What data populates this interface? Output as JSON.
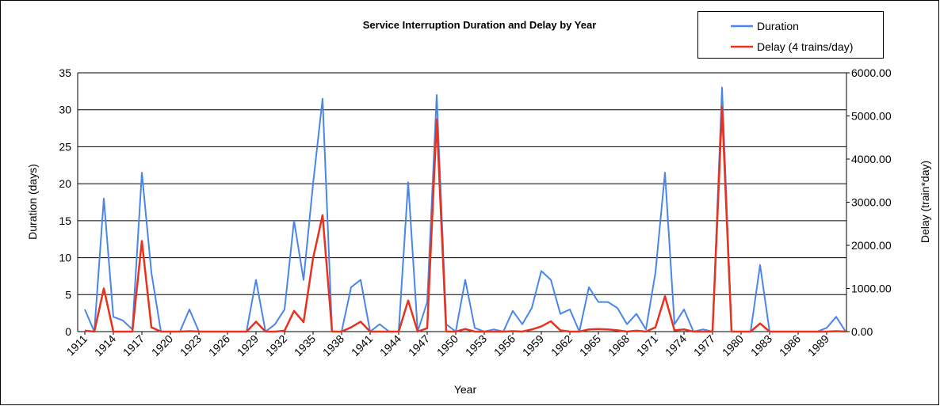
{
  "chart_data": {
    "type": "line",
    "title": "Service Interruption Duration and Delay by Year",
    "x_label": "Year",
    "y_label": "Duration (days)",
    "y2_label": "Delay (train*day)",
    "x": [
      1911,
      1912,
      1913,
      1914,
      1915,
      1916,
      1917,
      1918,
      1919,
      1920,
      1921,
      1922,
      1923,
      1924,
      1925,
      1926,
      1927,
      1928,
      1929,
      1930,
      1931,
      1932,
      1933,
      1934,
      1935,
      1936,
      1937,
      1938,
      1939,
      1940,
      1941,
      1942,
      1943,
      1944,
      1945,
      1946,
      1947,
      1948,
      1949,
      1950,
      1951,
      1952,
      1953,
      1954,
      1955,
      1956,
      1957,
      1958,
      1959,
      1960,
      1961,
      1962,
      1963,
      1964,
      1965,
      1966,
      1967,
      1968,
      1969,
      1970,
      1971,
      1972,
      1973,
      1974,
      1975,
      1976,
      1977,
      1978,
      1979,
      1980,
      1981,
      1982,
      1983,
      1984,
      1985,
      1986,
      1987,
      1988,
      1989,
      1990,
      1991
    ],
    "xlim": [
      1911,
      1991
    ],
    "xticks": [
      1911,
      1914,
      1917,
      1920,
      1923,
      1926,
      1929,
      1932,
      1935,
      1938,
      1941,
      1944,
      1947,
      1950,
      1953,
      1956,
      1959,
      1962,
      1965,
      1968,
      1971,
      1974,
      1977,
      1980,
      1983,
      1986,
      1989
    ],
    "ylim": [
      0,
      35
    ],
    "yticks": [
      0,
      5,
      10,
      15,
      20,
      25,
      30,
      35
    ],
    "y2lim": [
      0,
      6000
    ],
    "y2ticks": [
      {
        "value": 0,
        "label": "0.00"
      },
      {
        "value": 1000,
        "label": "1000.00"
      },
      {
        "value": 2000,
        "label": "2000.00"
      },
      {
        "value": 3000,
        "label": "3000.00"
      },
      {
        "value": 4000,
        "label": "4000.00"
      },
      {
        "value": 5000,
        "label": "5000.00"
      },
      {
        "value": 6000,
        "label": "6000.00"
      }
    ],
    "grid": true,
    "legend": "top-right",
    "series": [
      {
        "name": "Duration",
        "color": "#4a86e8",
        "values": [
          3,
          0,
          18,
          2,
          1.5,
          0.3,
          21.5,
          8,
          0,
          0,
          0,
          3,
          0,
          0,
          0,
          0,
          0,
          0,
          7,
          0,
          1,
          3,
          15,
          7,
          20,
          31.5,
          0,
          0,
          6,
          7,
          0,
          1,
          0,
          0,
          20.2,
          0,
          4,
          32,
          1,
          0,
          7,
          0.5,
          0,
          0.3,
          0,
          2.8,
          1,
          3.2,
          8.2,
          7,
          2.4,
          3,
          0,
          6,
          4,
          4,
          3.2,
          1,
          2.4,
          0.3,
          8,
          21.5,
          1,
          3,
          0,
          0.3,
          0,
          33,
          0,
          0,
          0,
          9,
          0,
          0,
          0,
          0,
          0,
          0,
          0.5,
          2,
          0
        ]
      },
      {
        "name": "Delay (4 trains/day)",
        "color": "#e8321e",
        "axis": "y2",
        "values": [
          20,
          0,
          1000,
          0,
          0,
          0,
          2100,
          100,
          0,
          0,
          0,
          10,
          0,
          0,
          0,
          0,
          0,
          0,
          230,
          0,
          0,
          20,
          480,
          220,
          1700,
          2700,
          0,
          0,
          100,
          230,
          0,
          0,
          0,
          0,
          720,
          0,
          80,
          4920,
          0,
          0,
          60,
          0,
          0,
          0,
          0,
          10,
          0,
          50,
          120,
          240,
          30,
          0,
          0,
          50,
          60,
          50,
          30,
          0,
          20,
          0,
          100,
          820,
          30,
          50,
          0,
          0,
          0,
          5200,
          0,
          0,
          0,
          190,
          0,
          0,
          0,
          0,
          0,
          0,
          0,
          10,
          0
        ]
      }
    ]
  }
}
